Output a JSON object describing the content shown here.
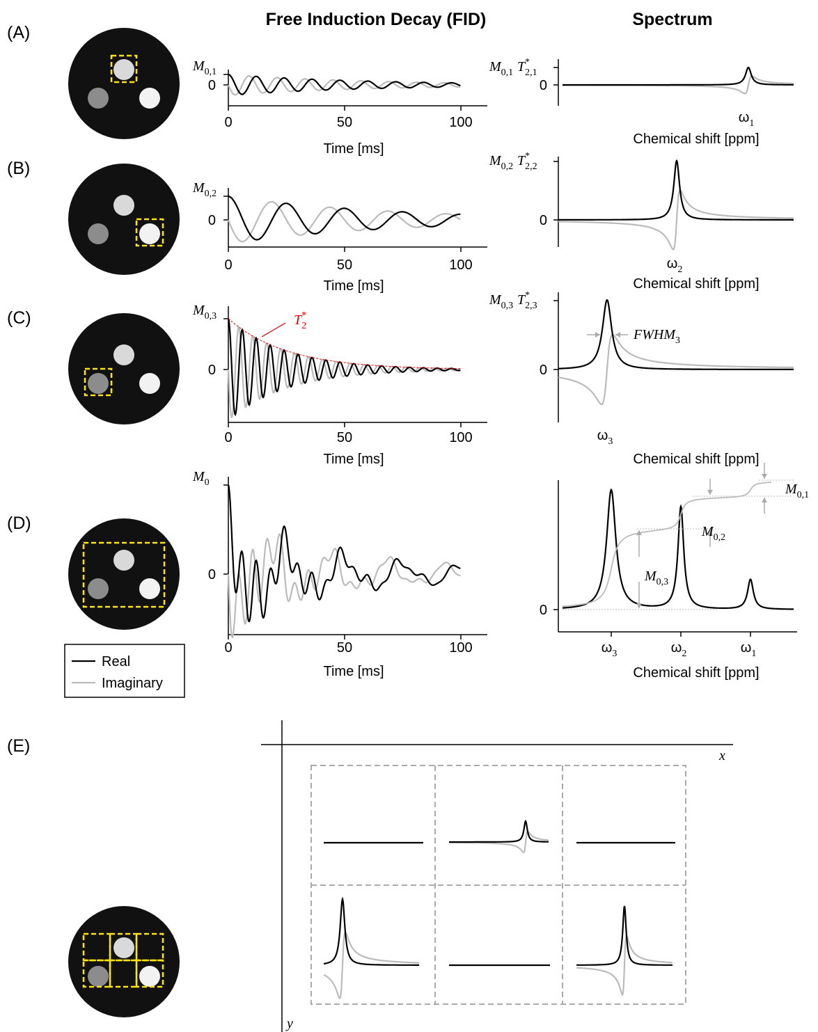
{
  "titles": {
    "fid": "Free Induction Decay (FID)",
    "spectrum": "Spectrum"
  },
  "fid_axis": {
    "xlim": [
      0,
      100
    ],
    "xticks": [
      0,
      50,
      100
    ],
    "yticks": [
      0
    ],
    "xlabel": "Time [ms]"
  },
  "spectrum_axis": {
    "yticks": [
      0
    ],
    "xlabel": "Chemical shift [ppm]"
  },
  "panels": [
    {
      "label": "(A)",
      "fid_ylabel": {
        "main": "M",
        "sub": "0,1"
      },
      "spec_ylabel": {
        "m": {
          "main": "M",
          "sub": "0,1"
        },
        "t": {
          "main": "T",
          "sup": "*",
          "sub": "2,1"
        }
      },
      "peaks": [
        {
          "main": "ω",
          "sub": "1"
        }
      ]
    },
    {
      "label": "(B)",
      "fid_ylabel": {
        "main": "M",
        "sub": "0,2"
      },
      "spec_ylabel": {
        "m": {
          "main": "M",
          "sub": "0,2"
        },
        "t": {
          "main": "T",
          "sup": "*",
          "sub": "2,2"
        }
      },
      "peaks": [
        {
          "main": "ω",
          "sub": "2"
        }
      ]
    },
    {
      "label": "(C)",
      "fid_ylabel": {
        "main": "M",
        "sub": "0,3"
      },
      "spec_ylabel": {
        "m": {
          "main": "M",
          "sub": "0,3"
        },
        "t": {
          "main": "T",
          "sup": "*",
          "sub": "2,3"
        }
      },
      "peaks": [
        {
          "main": "ω",
          "sub": "3"
        }
      ]
    },
    {
      "label": "(D)",
      "fid_ylabel": {
        "main": "M",
        "sub": "0"
      },
      "peaks": [
        {
          "main": "ω",
          "sub": "3"
        },
        {
          "main": "ω",
          "sub": "2"
        },
        {
          "main": "ω",
          "sub": "1"
        }
      ]
    }
  ],
  "annotations": {
    "t2": {
      "main": "T",
      "sup": "*",
      "sub": "2"
    },
    "fwhm": {
      "main": "FWHM",
      "sub": "3"
    },
    "m01": {
      "main": "M",
      "sub": "0,1"
    },
    "m02": {
      "main": "M",
      "sub": "0,2"
    },
    "m03": {
      "main": "M",
      "sub": "0,3"
    }
  },
  "legend": {
    "real": "Real",
    "imaginary": "Imaginary"
  },
  "panel_e": {
    "label": "(E)",
    "x_axis": "x",
    "y_axis": "y"
  }
}
